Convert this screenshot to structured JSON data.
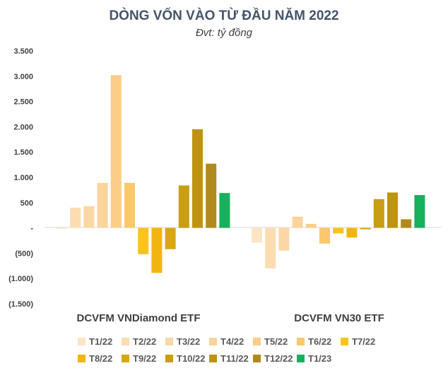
{
  "chart_data": {
    "type": "bar",
    "title": "DÒNG VỐN VÀO TỪ ĐẦU NĂM 2022",
    "subtitle": "Đvt: tỷ đồng",
    "ylim": [
      -1500,
      3500
    ],
    "yticks": [
      {
        "value": 3500,
        "label": "3.500"
      },
      {
        "value": 3000,
        "label": "3.000"
      },
      {
        "value": 2500,
        "label": "2.500"
      },
      {
        "value": 2000,
        "label": "2.000"
      },
      {
        "value": 1500,
        "label": "1.500"
      },
      {
        "value": 1000,
        "label": "1.000"
      },
      {
        "value": 500,
        "label": "500"
      },
      {
        "value": 0,
        "label": "-"
      },
      {
        "value": -500,
        "label": "(500)"
      },
      {
        "value": -1000,
        "label": "(1.000)"
      },
      {
        "value": -1500,
        "label": "(1.500)"
      }
    ],
    "categories": [
      "DCVFM VNDiamond ETF",
      "DCVFM VN30 ETF"
    ],
    "grid": false,
    "legend_position": "bottom",
    "series": [
      {
        "name": "T1/22",
        "color": "#fce4c4",
        "values": [
          -15,
          -290
        ]
      },
      {
        "name": "T2/22",
        "color": "#fcdcb0",
        "values": [
          400,
          -800
        ]
      },
      {
        "name": "T3/22",
        "color": "#fbd7a6",
        "values": [
          430,
          -450
        ]
      },
      {
        "name": "T4/22",
        "color": "#fbd39c",
        "values": [
          890,
          220
        ]
      },
      {
        "name": "T5/22",
        "color": "#fbcd88",
        "values": [
          3020,
          80
        ]
      },
      {
        "name": "T6/22",
        "color": "#f9c86c",
        "values": [
          890,
          -310
        ]
      },
      {
        "name": "T7/22",
        "color": "#fac31e",
        "values": [
          -520,
          -110
        ]
      },
      {
        "name": "T8/22",
        "color": "#f2b510",
        "values": [
          -890,
          -190
        ]
      },
      {
        "name": "T9/22",
        "color": "#d9a614",
        "values": [
          -420,
          -30
        ]
      },
      {
        "name": "T10/22",
        "color": "#c99d14",
        "values": [
          840,
          570
        ]
      },
      {
        "name": "T11/22",
        "color": "#bf9312",
        "values": [
          1950,
          700
        ]
      },
      {
        "name": "T12/22",
        "color": "#b08a1c",
        "values": [
          1270,
          170
        ]
      },
      {
        "name": "T1/23",
        "color": "#18b05c",
        "values": [
          690,
          650
        ]
      }
    ]
  }
}
